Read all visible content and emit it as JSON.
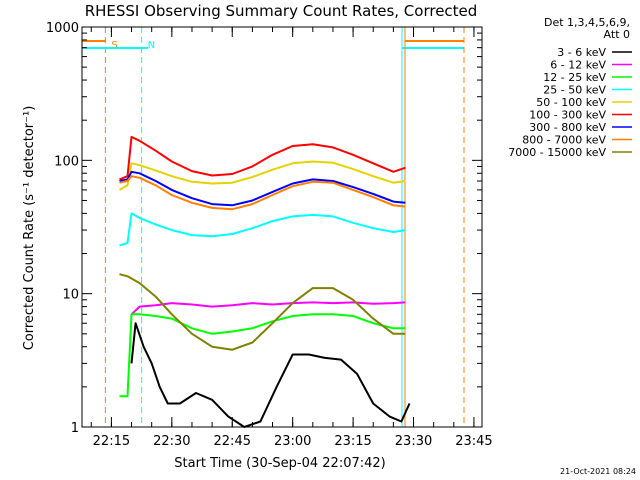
{
  "chart_data": {
    "type": "line",
    "title": "RHESSI Observing Summary Count Rates, Corrected",
    "ylabel": "Corrected Count Rate (s⁻¹ detector⁻¹)",
    "xlabel": "Start Time (30-Sep-04 22:07:42)",
    "yscale": "log",
    "ylim": [
      1,
      1000
    ],
    "xlim": [
      "22:07:42",
      "23:47:00"
    ],
    "xticks": [
      "22:15",
      "22:30",
      "22:45",
      "23:00",
      "23:15",
      "23:30",
      "23:45"
    ],
    "yticks": [
      "1",
      "10",
      "100",
      "1000"
    ],
    "legend_header": [
      "Det 1,3,4,5,6,9,",
      "Att 0"
    ],
    "timestamp": "21-Oct-2021 08:24",
    "markers": [
      {
        "label": "S",
        "time": "22:13:30",
        "color": "#ff8000"
      },
      {
        "label": "N",
        "time": "22:22:30",
        "color": "#00ffff"
      }
    ],
    "series": [
      {
        "name": "3 - 6 keV",
        "color": "#000000",
        "points": [
          [
            "22:20",
            3
          ],
          [
            "22:21",
            6
          ],
          [
            "22:23",
            4
          ],
          [
            "22:25",
            3
          ],
          [
            "22:27",
            2
          ],
          [
            "22:29",
            1.5
          ],
          [
            "22:32",
            1.5
          ],
          [
            "22:36",
            1.8
          ],
          [
            "22:40",
            1.6
          ],
          [
            "22:44",
            1.2
          ],
          [
            "22:48",
            1
          ],
          [
            "22:52",
            1.1
          ],
          [
            "22:56",
            2
          ],
          [
            "23:00",
            3.5
          ],
          [
            "23:04",
            3.5
          ],
          [
            "23:08",
            3.3
          ],
          [
            "23:12",
            3.2
          ],
          [
            "23:16",
            2.5
          ],
          [
            "23:20",
            1.5
          ],
          [
            "23:24",
            1.2
          ],
          [
            "23:27",
            1.1
          ],
          [
            "23:29",
            1.5
          ]
        ]
      },
      {
        "name": "6 - 12 keV",
        "color": "#ff00ff",
        "points": [
          [
            "22:20",
            7
          ],
          [
            "22:22",
            8
          ],
          [
            "22:26",
            8.2
          ],
          [
            "22:30",
            8.5
          ],
          [
            "22:35",
            8.3
          ],
          [
            "22:40",
            8.0
          ],
          [
            "22:45",
            8.2
          ],
          [
            "22:50",
            8.5
          ],
          [
            "22:55",
            8.3
          ],
          [
            "23:00",
            8.5
          ],
          [
            "23:05",
            8.6
          ],
          [
            "23:10",
            8.5
          ],
          [
            "23:15",
            8.6
          ],
          [
            "23:20",
            8.4
          ],
          [
            "23:25",
            8.5
          ],
          [
            "23:28",
            8.6
          ]
        ]
      },
      {
        "name": "12 - 25 keV",
        "color": "#00ff00",
        "points": [
          [
            "22:17",
            1.7
          ],
          [
            "22:19",
            1.7
          ],
          [
            "22:20",
            7
          ],
          [
            "22:22",
            7
          ],
          [
            "22:26",
            6.8
          ],
          [
            "22:30",
            6.5
          ],
          [
            "22:35",
            5.5
          ],
          [
            "22:40",
            5
          ],
          [
            "22:45",
            5.2
          ],
          [
            "22:50",
            5.5
          ],
          [
            "22:55",
            6.2
          ],
          [
            "23:00",
            6.8
          ],
          [
            "23:05",
            7
          ],
          [
            "23:10",
            7
          ],
          [
            "23:15",
            6.8
          ],
          [
            "23:20",
            6
          ],
          [
            "23:25",
            5.5
          ],
          [
            "23:28",
            5.5
          ]
        ]
      },
      {
        "name": "25 - 50 keV",
        "color": "#00ffff",
        "points": [
          [
            "22:17",
            23
          ],
          [
            "22:19",
            24
          ],
          [
            "22:20",
            40
          ],
          [
            "22:22",
            37
          ],
          [
            "22:26",
            33
          ],
          [
            "22:30",
            30
          ],
          [
            "22:35",
            27.5
          ],
          [
            "22:40",
            27
          ],
          [
            "22:45",
            28
          ],
          [
            "22:50",
            31
          ],
          [
            "22:55",
            35
          ],
          [
            "23:00",
            38
          ],
          [
            "23:05",
            39
          ],
          [
            "23:10",
            38
          ],
          [
            "23:15",
            34
          ],
          [
            "23:20",
            31
          ],
          [
            "23:25",
            29
          ],
          [
            "23:28",
            30
          ]
        ]
      },
      {
        "name": "50 - 100 keV",
        "color": "#e6d200",
        "points": [
          [
            "22:17",
            60
          ],
          [
            "22:19",
            65
          ],
          [
            "22:20",
            95
          ],
          [
            "22:22",
            92
          ],
          [
            "22:26",
            84
          ],
          [
            "22:30",
            76
          ],
          [
            "22:35",
            69
          ],
          [
            "22:40",
            67
          ],
          [
            "22:45",
            68
          ],
          [
            "22:50",
            75
          ],
          [
            "22:55",
            85
          ],
          [
            "23:00",
            95
          ],
          [
            "23:05",
            98
          ],
          [
            "23:10",
            96
          ],
          [
            "23:15",
            86
          ],
          [
            "23:20",
            76
          ],
          [
            "23:25",
            68
          ],
          [
            "23:28",
            70
          ]
        ]
      },
      {
        "name": "100 - 300 keV",
        "color": "#ff0000",
        "points": [
          [
            "22:17",
            72
          ],
          [
            "22:19",
            76
          ],
          [
            "22:20",
            150
          ],
          [
            "22:22",
            140
          ],
          [
            "22:26",
            118
          ],
          [
            "22:30",
            98
          ],
          [
            "22:35",
            83
          ],
          [
            "22:40",
            77
          ],
          [
            "22:45",
            79
          ],
          [
            "22:50",
            90
          ],
          [
            "22:55",
            110
          ],
          [
            "23:00",
            128
          ],
          [
            "23:05",
            132
          ],
          [
            "23:10",
            125
          ],
          [
            "23:15",
            110
          ],
          [
            "23:20",
            95
          ],
          [
            "23:25",
            82
          ],
          [
            "23:28",
            88
          ]
        ]
      },
      {
        "name": "300 - 800 keV",
        "color": "#0000ff",
        "points": [
          [
            "22:17",
            70
          ],
          [
            "22:19",
            72
          ],
          [
            "22:20",
            82
          ],
          [
            "22:22",
            80
          ],
          [
            "22:26",
            70
          ],
          [
            "22:30",
            60
          ],
          [
            "22:35",
            52
          ],
          [
            "22:40",
            47
          ],
          [
            "22:45",
            46
          ],
          [
            "22:50",
            50
          ],
          [
            "22:55",
            58
          ],
          [
            "23:00",
            67
          ],
          [
            "23:05",
            72
          ],
          [
            "23:10",
            70
          ],
          [
            "23:15",
            63
          ],
          [
            "23:20",
            56
          ],
          [
            "23:25",
            49
          ],
          [
            "23:28",
            48
          ]
        ]
      },
      {
        "name": "800 - 7000 keV",
        "color": "#ff8000",
        "points": [
          [
            "22:17",
            68
          ],
          [
            "22:19",
            70
          ],
          [
            "22:20",
            76
          ],
          [
            "22:22",
            74
          ],
          [
            "22:26",
            65
          ],
          [
            "22:30",
            55
          ],
          [
            "22:35",
            48
          ],
          [
            "22:40",
            44
          ],
          [
            "22:45",
            43
          ],
          [
            "22:50",
            47
          ],
          [
            "22:55",
            55
          ],
          [
            "23:00",
            64
          ],
          [
            "23:05",
            69
          ],
          [
            "23:10",
            68
          ],
          [
            "23:15",
            60
          ],
          [
            "23:20",
            53
          ],
          [
            "23:25",
            46
          ],
          [
            "23:28",
            45
          ]
        ]
      },
      {
        "name": "7000 - 15000 keV",
        "color": "#808000",
        "points": [
          [
            "22:17",
            14
          ],
          [
            "22:19",
            13.5
          ],
          [
            "22:20",
            13
          ],
          [
            "22:22",
            12
          ],
          [
            "22:26",
            9.5
          ],
          [
            "22:30",
            7
          ],
          [
            "22:35",
            5
          ],
          [
            "22:40",
            4
          ],
          [
            "22:45",
            3.8
          ],
          [
            "22:50",
            4.3
          ],
          [
            "22:55",
            6
          ],
          [
            "23:00",
            8.5
          ],
          [
            "23:05",
            11
          ],
          [
            "23:10",
            11
          ],
          [
            "23:15",
            9
          ],
          [
            "23:20",
            6.5
          ],
          [
            "23:25",
            5
          ],
          [
            "23:28",
            5
          ]
        ]
      }
    ]
  }
}
